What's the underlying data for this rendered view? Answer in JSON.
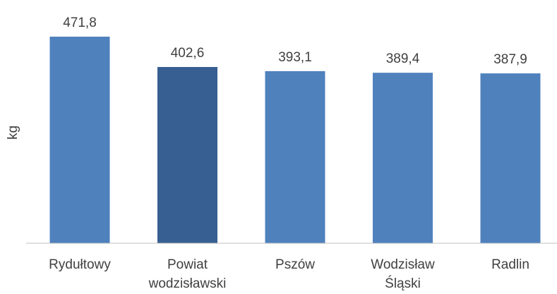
{
  "chart_data": {
    "type": "bar",
    "title": "",
    "xlabel": "",
    "ylabel": "kg",
    "categories": [
      [
        "Rydułtowy"
      ],
      [
        "Powiat",
        "wodzisławski"
      ],
      [
        "Pszów"
      ],
      [
        "Wodzisław",
        "Śląski"
      ],
      [
        "Radlin"
      ]
    ],
    "values": [
      471.8,
      402.6,
      393.1,
      389.4,
      387.9
    ],
    "value_labels": [
      "471,8",
      "402,6",
      "393,1",
      "389,4",
      "387,9"
    ],
    "highlight_index": 1,
    "colors": {
      "bar": "#4F81BD",
      "highlight": "#375F91",
      "axis": "#BFBFBF",
      "text": "#404040"
    },
    "ylim": [
      0,
      471.8
    ],
    "grid": false,
    "legend": "none"
  }
}
